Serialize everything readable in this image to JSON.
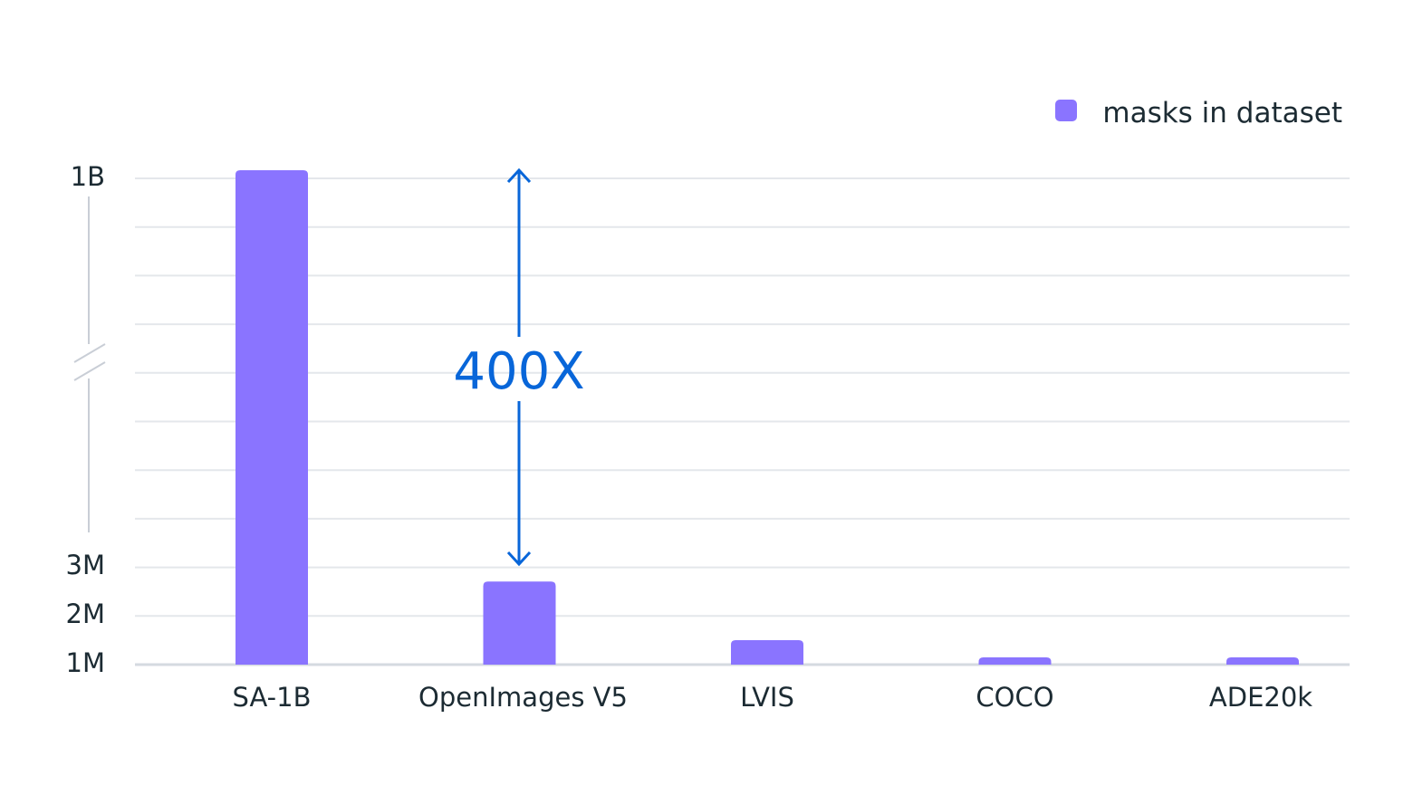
{
  "chart_data": {
    "type": "bar",
    "categories": [
      "SA-1B",
      "OpenImages V5",
      "LVIS",
      "COCO",
      "ADE20k"
    ],
    "series": [
      {
        "name": "masks in dataset",
        "values": [
          1100000000,
          2700000,
          1500000,
          1100000,
          1080000
        ]
      }
    ],
    "y_tick_labels": [
      "1M",
      "2M",
      "3M",
      "1B"
    ],
    "y_scale": "broken-axis (1M–3M linear, break, 1B)",
    "annotation": "400X",
    "legend_position": "top-right",
    "grid": true,
    "color": "#8a74ff"
  }
}
